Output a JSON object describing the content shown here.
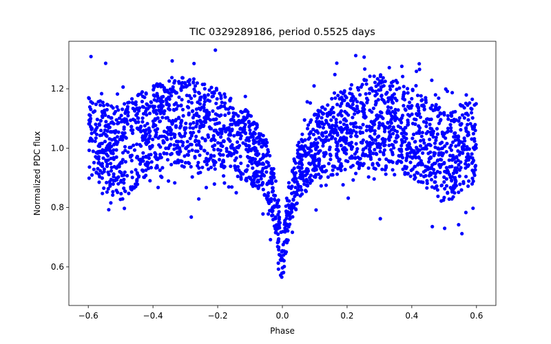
{
  "chart_data": {
    "type": "scatter",
    "title": "TIC 0329289186, period 0.5525 days",
    "xlabel": "Phase",
    "ylabel": "Normalized PDC flux",
    "xlim": [
      -0.66,
      0.66
    ],
    "ylim": [
      0.47,
      1.36
    ],
    "xticks": [
      -0.6,
      -0.4,
      -0.2,
      0.0,
      0.2,
      0.4,
      0.6
    ],
    "xtick_labels": [
      "−0.6",
      "−0.4",
      "−0.2",
      "0.0",
      "0.2",
      "0.4",
      "0.6"
    ],
    "yticks": [
      0.6,
      0.8,
      1.0,
      1.2
    ],
    "ytick_labels": [
      "0.6",
      "0.8",
      "1.0",
      "1.2"
    ],
    "grid": false,
    "marker_color": "#0000ff",
    "phase_range": [
      -0.6,
      0.6
    ],
    "profile": {
      "description": "mean flux vs phase (sampled), with band half-width",
      "phase": [
        -0.6,
        -0.5,
        -0.4,
        -0.3,
        -0.2,
        -0.1,
        -0.05,
        -0.02,
        0.0,
        0.02,
        0.05,
        0.1,
        0.2,
        0.3,
        0.4,
        0.5,
        0.6
      ],
      "mean_flux": [
        1.03,
        0.98,
        1.07,
        1.09,
        1.06,
        1.0,
        0.93,
        0.8,
        0.63,
        0.8,
        0.93,
        1.0,
        1.07,
        1.09,
        1.05,
        0.97,
        1.03
      ],
      "half_width": [
        0.14,
        0.16,
        0.15,
        0.15,
        0.14,
        0.12,
        0.1,
        0.09,
        0.08,
        0.09,
        0.1,
        0.12,
        0.14,
        0.16,
        0.15,
        0.16,
        0.14
      ]
    },
    "extremes": {
      "min_flux": 0.5,
      "max_flux": 1.33,
      "min_at_phase": 0.0
    }
  }
}
